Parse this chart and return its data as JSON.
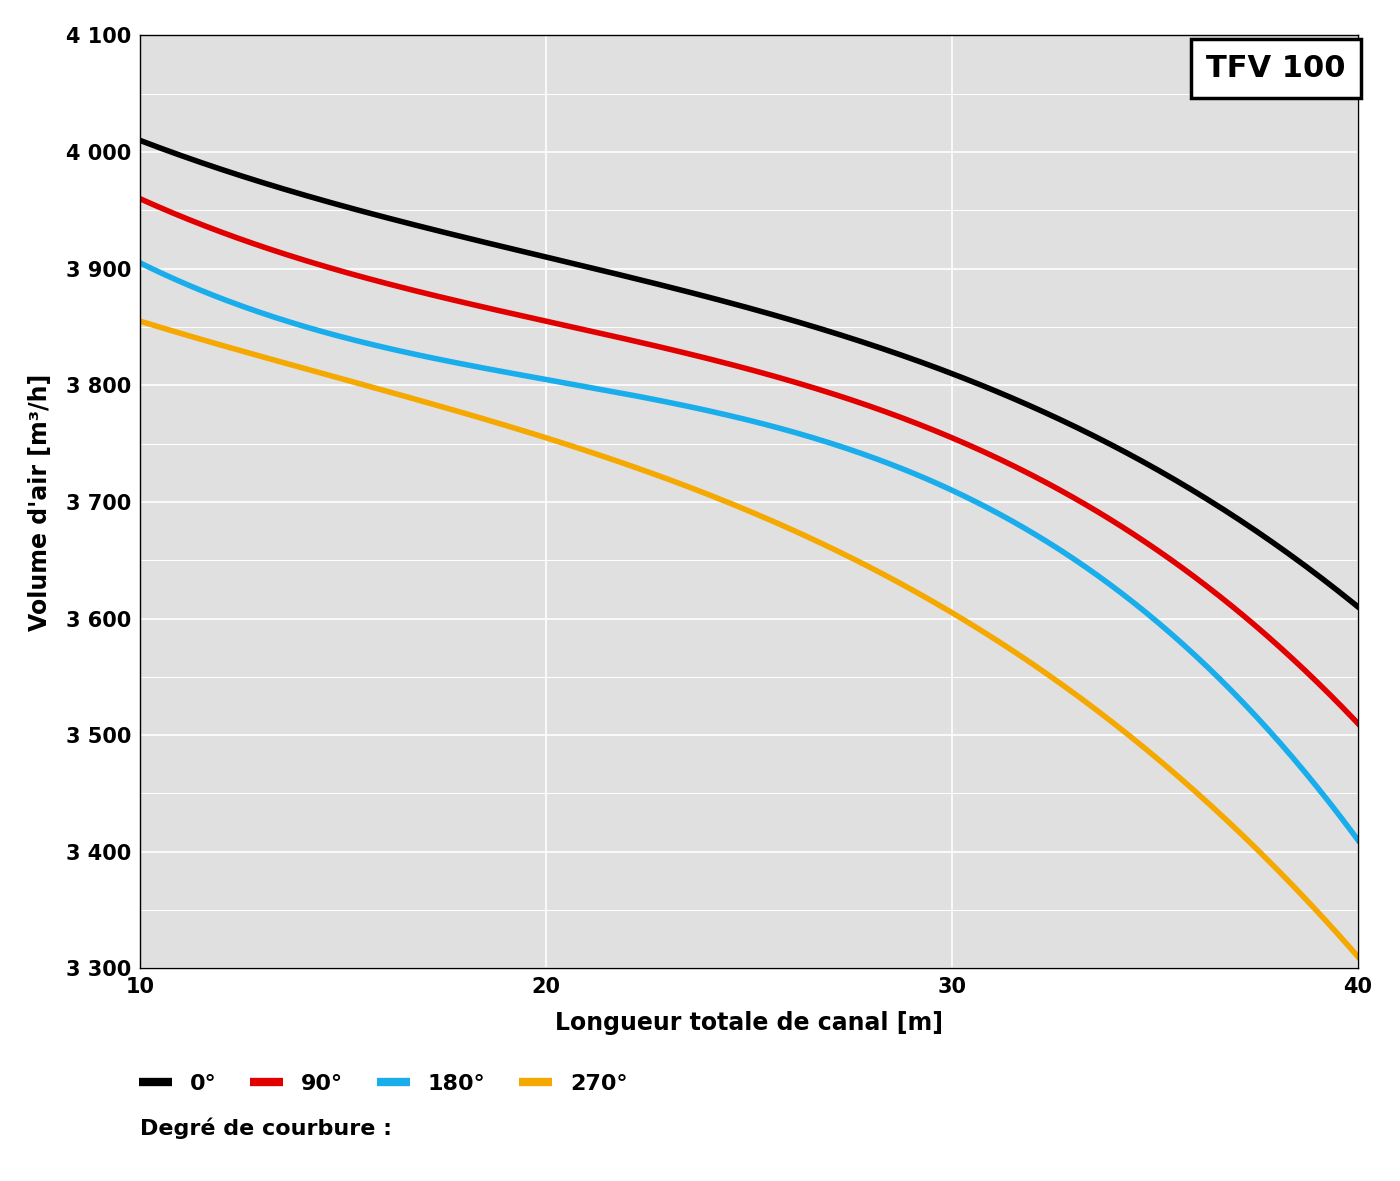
{
  "title": "TFV 100",
  "xlabel": "Longueur totale de canal [m]",
  "ylabel": "Volume d'air [m³/h]",
  "legend_title": "Degré de courbure :",
  "x": [
    10,
    20,
    30,
    40
  ],
  "series": [
    {
      "label": "0°",
      "color": "#000000",
      "linewidth": 4.0,
      "y": [
        4010,
        3910,
        3810,
        3610
      ]
    },
    {
      "label": "90°",
      "color": "#e00000",
      "linewidth": 4.0,
      "y": [
        3960,
        3855,
        3755,
        3510
      ]
    },
    {
      "label": "180°",
      "color": "#1aadec",
      "linewidth": 4.0,
      "y": [
        3905,
        3805,
        3710,
        3410
      ]
    },
    {
      "label": "270°",
      "color": "#f5a800",
      "linewidth": 4.0,
      "y": [
        3855,
        3755,
        3605,
        3310
      ]
    }
  ],
  "xlim": [
    10,
    40
  ],
  "ylim": [
    3300,
    4100
  ],
  "ymajor_ticks": [
    3300,
    3400,
    3500,
    3600,
    3700,
    3800,
    3900,
    4000,
    4100
  ],
  "yminor_ticks": [
    3350,
    3450,
    3550,
    3650,
    3750,
    3850,
    3950,
    4050
  ],
  "xticks": [
    10,
    20,
    30,
    40
  ],
  "background_color": "#e0e0e0",
  "grid_major_color": "#aaaaaa",
  "grid_minor_color": "#c8c8c8",
  "fig_background": "#ffffff",
  "title_fontsize": 22,
  "label_fontsize": 17,
  "tick_fontsize": 15,
  "legend_fontsize": 16
}
